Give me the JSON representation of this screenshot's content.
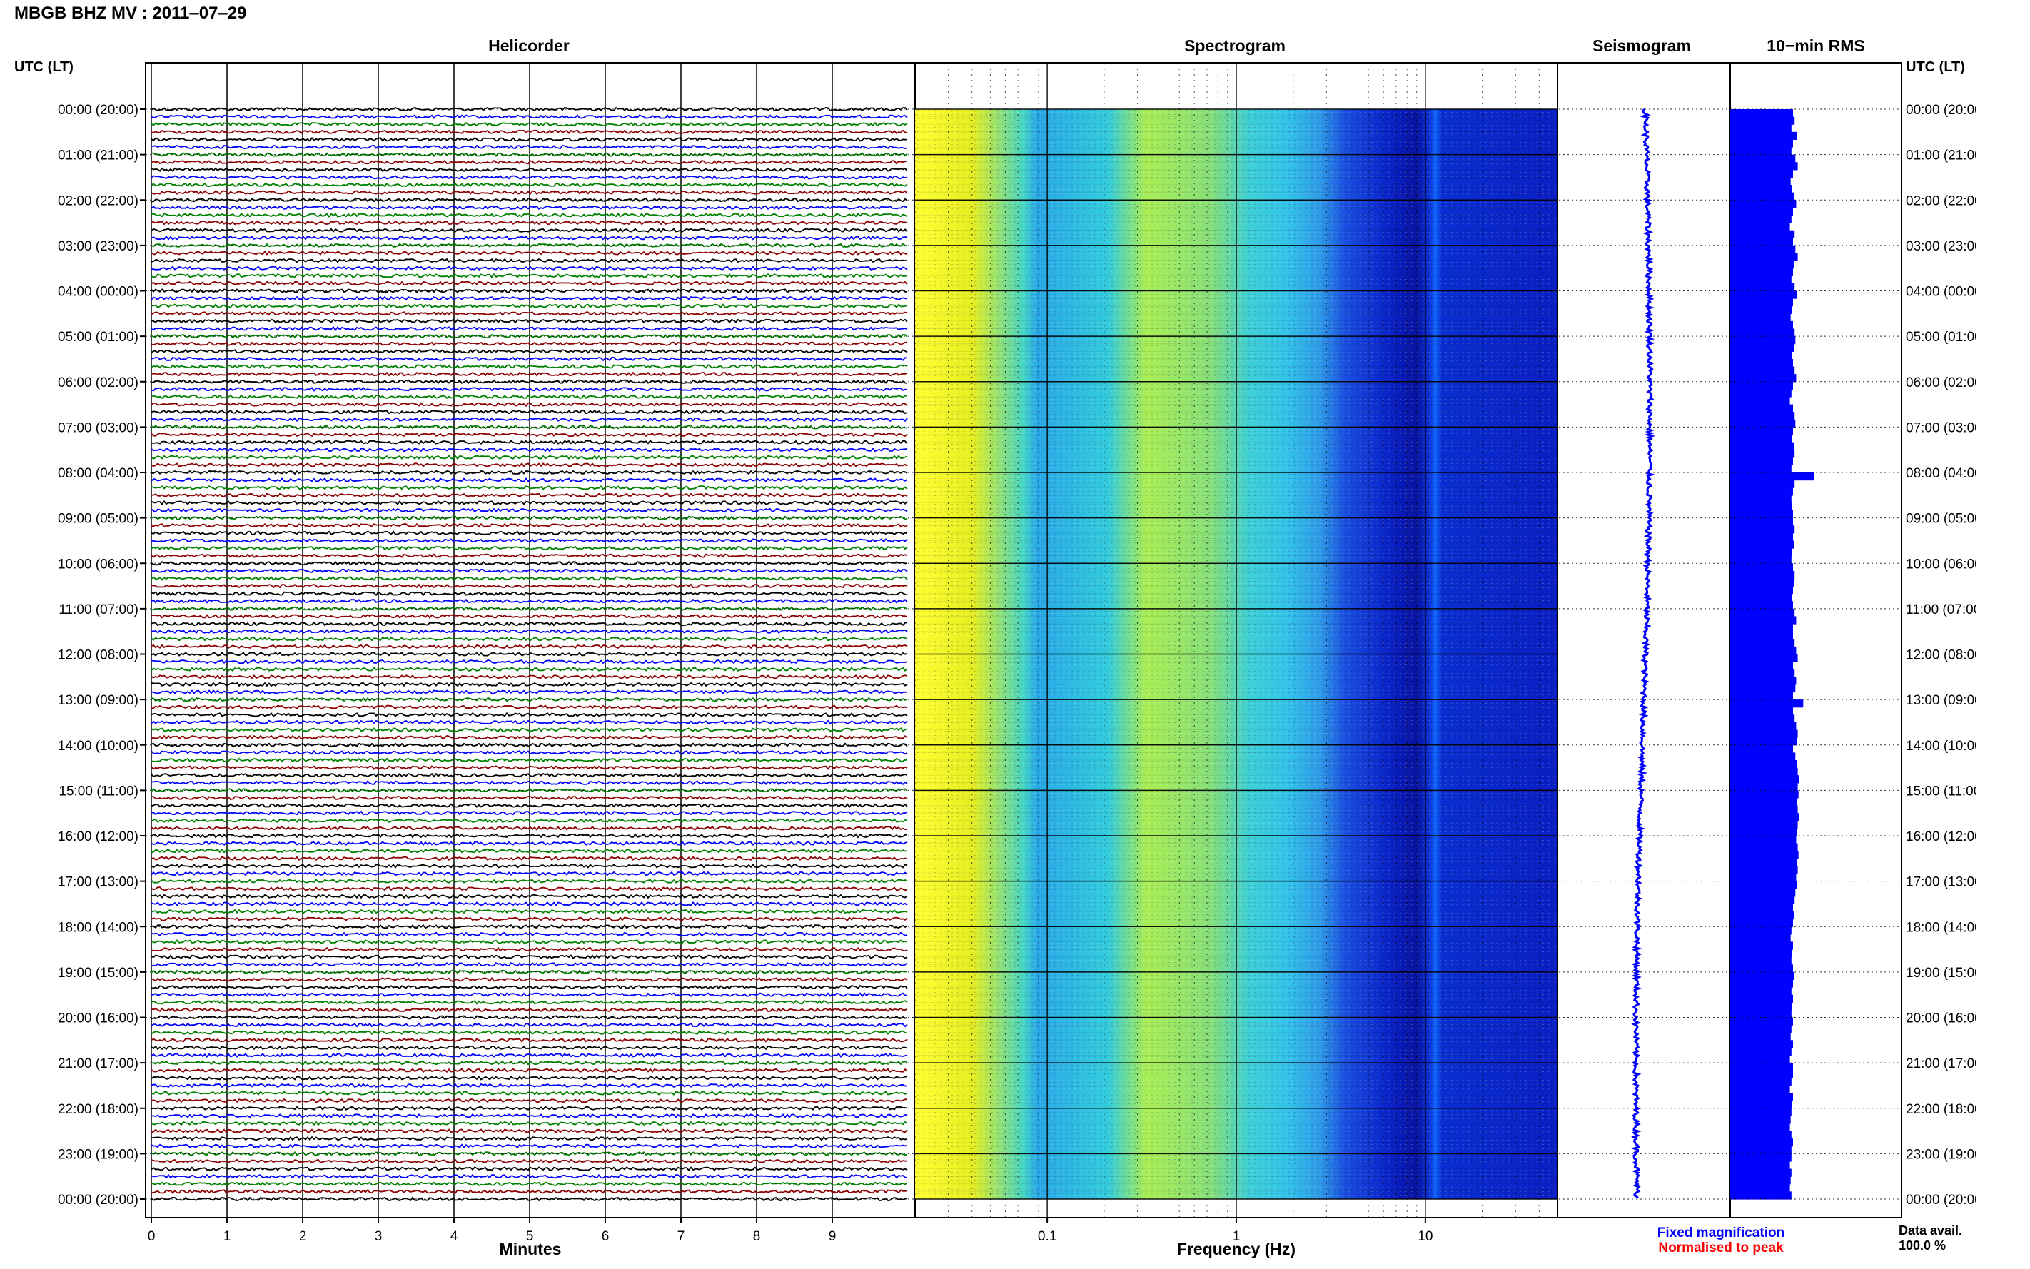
{
  "header": {
    "title": "MBGB BHZ MV : 2011‒07‒29"
  },
  "panels": {
    "helicorder": "Helicorder",
    "spectrogram": "Spectrogram",
    "seismogram": "Seismogram",
    "rms": "10−min RMS"
  },
  "axes": {
    "left_header": "UTC (LT)",
    "right_header": "UTC (LT)",
    "minutes_label": "Minutes",
    "frequency_label": "Frequency (Hz)"
  },
  "legend": {
    "fixed": "Fixed magnification",
    "normalised": "Normalised to peak",
    "fixed_color": "#0000ff",
    "normalised_color": "#ff0000"
  },
  "data_avail": {
    "label": "Data avail.",
    "value": "100.0 %"
  },
  "colors": {
    "trace_cycle": [
      "#000000",
      "#0000ff",
      "#008000",
      "#8b0000"
    ],
    "rms_fill": "#0000ff",
    "seismogram": "#0000ff"
  },
  "chart_data": {
    "type": "heatmap",
    "time_labels": [
      "00:00 (20:00)",
      "01:00 (21:00)",
      "02:00 (22:00)",
      "03:00 (23:00)",
      "04:00 (00:00)",
      "05:00 (01:00)",
      "06:00 (02:00)",
      "07:00 (03:00)",
      "08:00 (04:00)",
      "09:00 (05:00)",
      "10:00 (06:00)",
      "11:00 (07:00)",
      "12:00 (08:00)",
      "13:00 (09:00)",
      "14:00 (10:00)",
      "15:00 (11:00)",
      "16:00 (12:00)",
      "17:00 (13:00)",
      "18:00 (14:00)",
      "19:00 (15:00)",
      "20:00 (16:00)",
      "21:00 (17:00)",
      "22:00 (18:00)",
      "23:00 (19:00)",
      "00:00 (20:00)"
    ],
    "minute_ticks": [
      "0",
      "1",
      "2",
      "3",
      "4",
      "5",
      "6",
      "7",
      "8",
      "9"
    ],
    "freq_ticks": [
      "0.1",
      "1",
      "10"
    ],
    "freq_range_hz": [
      0.02,
      50
    ],
    "rows_per_hour": 6,
    "rms_relative": [
      0.8,
      0.82,
      0.78,
      0.85,
      0.8,
      0.78,
      0.83,
      0.86,
      0.8,
      0.77,
      0.79,
      0.81,
      0.84,
      0.8,
      0.78,
      0.76,
      0.82,
      0.8,
      0.83,
      0.86,
      0.81,
      0.8,
      0.78,
      0.82,
      0.85,
      0.8,
      0.79,
      0.77,
      0.8,
      0.82,
      0.83,
      0.81,
      0.79,
      0.8,
      0.82,
      0.84,
      0.8,
      0.78,
      0.76,
      0.8,
      0.82,
      0.83,
      0.8,
      0.79,
      0.81,
      0.82,
      0.8,
      0.78,
      1.07,
      0.82,
      0.8,
      0.78,
      0.79,
      0.8,
      0.8,
      0.82,
      0.8,
      0.81,
      0.79,
      0.78,
      0.8,
      0.82,
      0.81,
      0.8,
      0.79,
      0.8,
      0.82,
      0.84,
      0.8,
      0.8,
      0.82,
      0.84,
      0.86,
      0.8,
      0.82,
      0.84,
      0.83,
      0.8,
      0.93,
      0.8,
      0.82,
      0.84,
      0.86,
      0.85,
      0.8,
      0.83,
      0.85,
      0.86,
      0.88,
      0.86,
      0.87,
      0.85,
      0.86,
      0.88,
      0.86,
      0.85,
      0.84,
      0.86,
      0.87,
      0.85,
      0.86,
      0.84,
      0.85,
      0.83,
      0.82,
      0.8,
      0.81,
      0.8,
      0.78,
      0.77,
      0.8,
      0.79,
      0.78,
      0.8,
      0.81,
      0.8,
      0.78,
      0.8,
      0.79,
      0.78,
      0.8,
      0.78,
      0.77,
      0.8,
      0.78,
      0.76,
      0.8,
      0.8,
      0.78,
      0.76,
      0.8,
      0.79,
      0.78,
      0.77,
      0.76,
      0.78,
      0.8,
      0.78,
      0.78,
      0.76,
      0.78,
      0.77,
      0.76,
      0.78
    ]
  }
}
